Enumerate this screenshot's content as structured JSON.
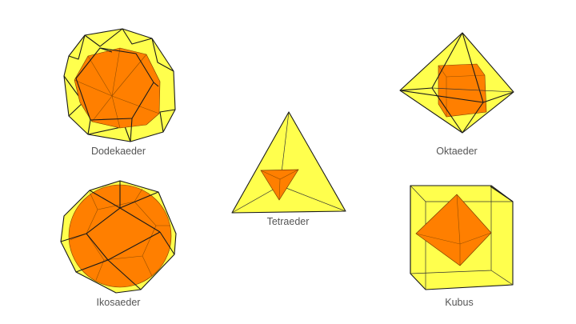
{
  "colors": {
    "outer": "#ffff4d",
    "inner": "#ff7f00",
    "edge": "#1a1a1a",
    "label": "#555555"
  },
  "solids": {
    "dodecahedron": {
      "label": "Dodekaeder"
    },
    "icosahedron": {
      "label": "Ikosaeder"
    },
    "tetrahedron": {
      "label": "Tetraeder"
    },
    "octahedron": {
      "label": "Oktaeder"
    },
    "cube": {
      "label": "Kubus"
    }
  }
}
